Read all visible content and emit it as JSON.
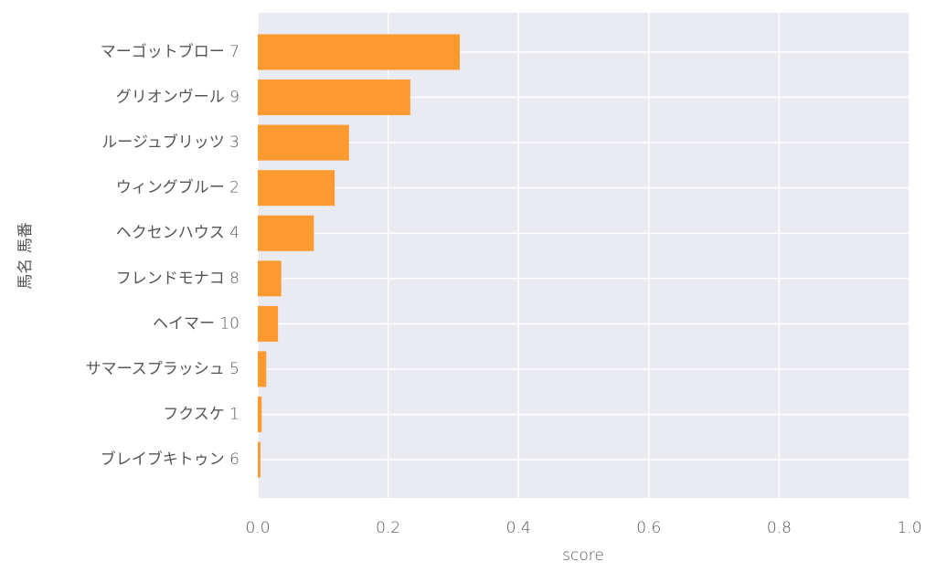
{
  "chart_data": {
    "type": "barh",
    "categories": [
      "マーゴットブロー 7",
      "グリオンヴール 9",
      "ルージュブリッツ 3",
      "ウィングブルー 2",
      "ヘクセンハウス 4",
      "フレンドモナコ 8",
      "ヘイマー 10",
      "サマースプラッシュ 5",
      "フクスケ 1",
      "ブレイブキトゥン 6"
    ],
    "values": [
      0.31,
      0.234,
      0.14,
      0.118,
      0.086,
      0.036,
      0.031,
      0.013,
      0.006,
      0.004
    ],
    "color": "#fc9a30",
    "xlabel": "score",
    "ylabel": "馬名 馬番",
    "xlim": [
      0,
      1
    ],
    "xticks": [
      {
        "value": 0,
        "label": "0.0"
      },
      0.2,
      0.4,
      0.6,
      0.8,
      {
        "value": 1,
        "label": "1.0"
      }
    ],
    "grid": true
  }
}
